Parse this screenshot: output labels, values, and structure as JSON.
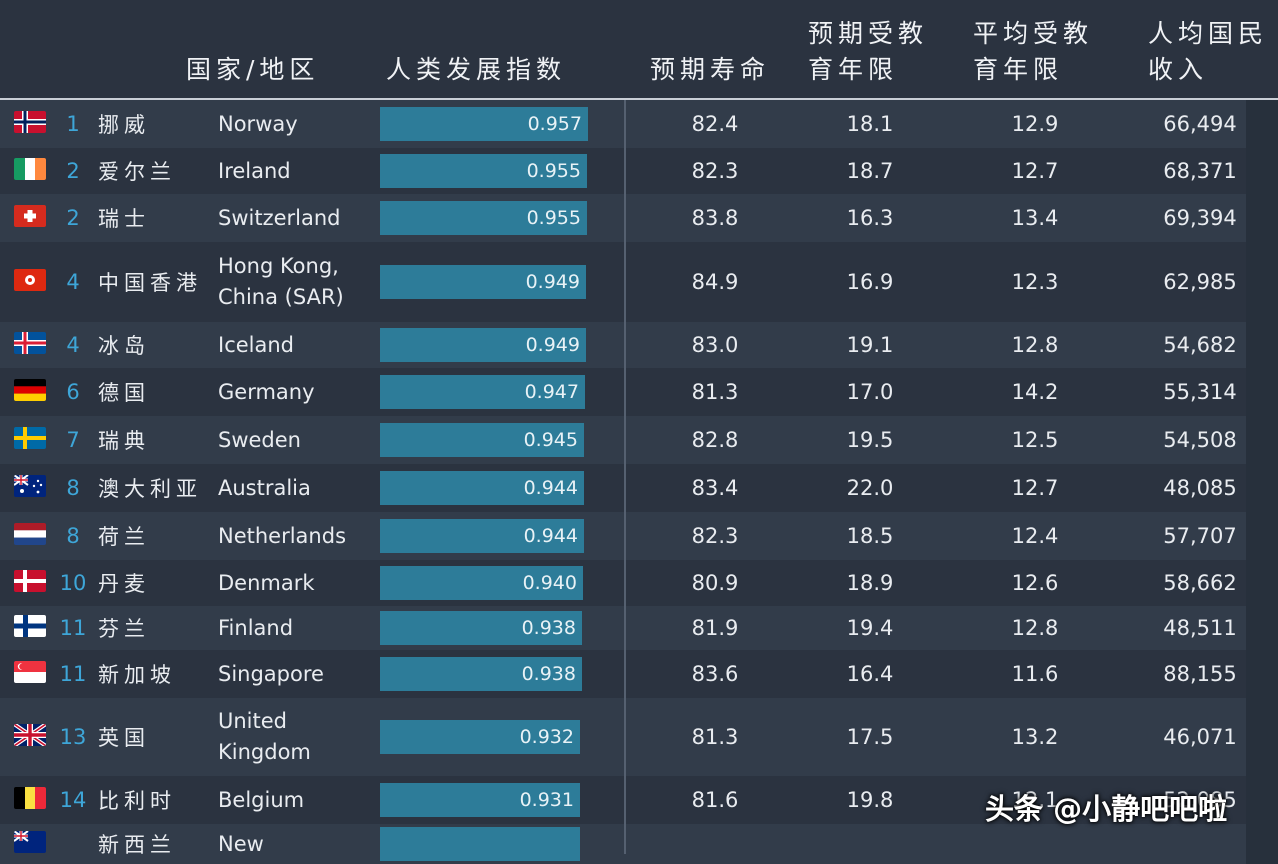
{
  "header": {
    "country": "国家/地区",
    "hdi": "人类发展指数",
    "life": "预期寿命",
    "expected_line1": "预期受教",
    "expected_line2": "育年限",
    "mean_line1": "平均受教",
    "mean_line2": "育年限",
    "gni_line1": "人均国民",
    "gni_line2": "收入"
  },
  "rows": [
    {
      "flag": "norway",
      "rank": "1",
      "cn": "挪威",
      "en": "Norway",
      "hdi": "0.957",
      "hdi_value": 0.957,
      "life": "82.4",
      "expected": "18.1",
      "mean": "12.9",
      "gni": "66,494"
    },
    {
      "flag": "ireland",
      "rank": "2",
      "cn": "爱尔兰",
      "en": "Ireland",
      "hdi": "0.955",
      "hdi_value": 0.955,
      "life": "82.3",
      "expected": "18.7",
      "mean": "12.7",
      "gni": "68,371"
    },
    {
      "flag": "switzerland",
      "rank": "2",
      "cn": "瑞士",
      "en": "Switzerland",
      "hdi": "0.955",
      "hdi_value": 0.955,
      "life": "83.8",
      "expected": "16.3",
      "mean": "13.4",
      "gni": "69,394"
    },
    {
      "flag": "hongkong",
      "rank": "4",
      "cn": "中国香港",
      "en": "Hong Kong, China (SAR)",
      "hdi": "0.949",
      "hdi_value": 0.949,
      "life": "84.9",
      "expected": "16.9",
      "mean": "12.3",
      "gni": "62,985"
    },
    {
      "flag": "iceland",
      "rank": "4",
      "cn": "冰岛",
      "en": "Iceland",
      "hdi": "0.949",
      "hdi_value": 0.949,
      "life": "83.0",
      "expected": "19.1",
      "mean": "12.8",
      "gni": "54,682"
    },
    {
      "flag": "germany",
      "rank": "6",
      "cn": "德国",
      "en": "Germany",
      "hdi": "0.947",
      "hdi_value": 0.947,
      "life": "81.3",
      "expected": "17.0",
      "mean": "14.2",
      "gni": "55,314"
    },
    {
      "flag": "sweden",
      "rank": "7",
      "cn": "瑞典",
      "en": "Sweden",
      "hdi": "0.945",
      "hdi_value": 0.945,
      "life": "82.8",
      "expected": "19.5",
      "mean": "12.5",
      "gni": "54,508"
    },
    {
      "flag": "australia",
      "rank": "8",
      "cn": "澳大利亚",
      "en": "Australia",
      "hdi": "0.944",
      "hdi_value": 0.944,
      "life": "83.4",
      "expected": "22.0",
      "mean": "12.7",
      "gni": "48,085"
    },
    {
      "flag": "netherlands",
      "rank": "8",
      "cn": "荷兰",
      "en": "Netherlands",
      "hdi": "0.944",
      "hdi_value": 0.944,
      "life": "82.3",
      "expected": "18.5",
      "mean": "12.4",
      "gni": "57,707"
    },
    {
      "flag": "denmark",
      "rank": "10",
      "cn": "丹麦",
      "en": "Denmark",
      "hdi": "0.940",
      "hdi_value": 0.94,
      "life": "80.9",
      "expected": "18.9",
      "mean": "12.6",
      "gni": "58,662"
    },
    {
      "flag": "finland",
      "rank": "11",
      "cn": "芬兰",
      "en": "Finland",
      "hdi": "0.938",
      "hdi_value": 0.938,
      "life": "81.9",
      "expected": "19.4",
      "mean": "12.8",
      "gni": "48,511"
    },
    {
      "flag": "singapore",
      "rank": "11",
      "cn": "新加坡",
      "en": "Singapore",
      "hdi": "0.938",
      "hdi_value": 0.938,
      "life": "83.6",
      "expected": "16.4",
      "mean": "11.6",
      "gni": "88,155"
    },
    {
      "flag": "uk",
      "rank": "13",
      "cn": "英国",
      "en": "United Kingdom",
      "hdi": "0.932",
      "hdi_value": 0.932,
      "life": "81.3",
      "expected": "17.5",
      "mean": "13.2",
      "gni": "46,071"
    },
    {
      "flag": "belgium",
      "rank": "14",
      "cn": "比利时",
      "en": "Belgium",
      "hdi": "0.931",
      "hdi_value": 0.931,
      "life": "81.6",
      "expected": "19.8",
      "mean": "12.1",
      "gni": "52,085"
    },
    {
      "flag": "newzealand",
      "rank": "",
      "cn": "新西兰",
      "en": "New",
      "hdi": "",
      "hdi_value": 0.931,
      "life": "",
      "expected": "",
      "mean": "",
      "gni": ""
    }
  ],
  "watermark": "头条 @小静吧吧啦"
}
